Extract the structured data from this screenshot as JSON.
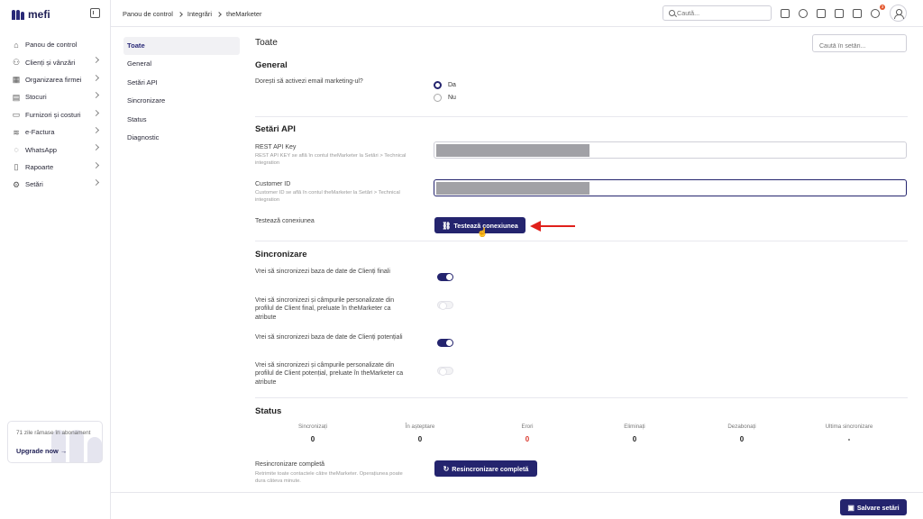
{
  "app": {
    "logo_text": "mefi"
  },
  "sidebar": {
    "items": [
      {
        "label": "Panou de control",
        "icon": "home-icon",
        "chevron": false
      },
      {
        "label": "Clienți și vânzări",
        "icon": "users-icon",
        "chevron": true
      },
      {
        "label": "Organizarea firmei",
        "icon": "building-icon",
        "chevron": true
      },
      {
        "label": "Stocuri",
        "icon": "box-icon",
        "chevron": true
      },
      {
        "label": "Furnizori și costuri",
        "icon": "truck-icon",
        "chevron": true
      },
      {
        "label": "e-Factura",
        "icon": "efactura-icon",
        "chevron": true
      },
      {
        "label": "WhatsApp",
        "icon": "whatsapp-icon",
        "chevron": true
      },
      {
        "label": "Rapoarte",
        "icon": "clipboard-icon",
        "chevron": true
      },
      {
        "label": "Setări",
        "icon": "gear-icon",
        "chevron": true
      }
    ],
    "subscription": {
      "text": "71 zile rămase în abonament",
      "upgrade_label": "Upgrade now"
    }
  },
  "header": {
    "breadcrumbs": [
      "Panou de control",
      "Integrări",
      "theMarketer"
    ],
    "search_placeholder": "Caută...",
    "notification_count": "3"
  },
  "section_nav": [
    "Toate",
    "General",
    "Setări API",
    "Sincronizare",
    "Status",
    "Diagnostic"
  ],
  "main": {
    "title": "Toate",
    "settings_search_placeholder": "Caută în setări...",
    "general": {
      "title": "General",
      "question": "Dorești să activezi email marketing-ul?",
      "options": [
        "Da",
        "Nu"
      ],
      "selected": "Da"
    },
    "api": {
      "title": "Setări API",
      "rest_key_label": "REST API Key",
      "rest_key_hint": "REST API KEY se află în contul theMarketer la Setări > Technical integration",
      "customer_id_label": "Customer ID",
      "customer_id_hint": "Customer ID se află în contul theMarketer la Setări > Technical integration",
      "test_label": "Testează conexiunea",
      "test_button": "Testează conexiunea"
    },
    "sync": {
      "title": "Sincronizare",
      "rows": [
        {
          "label": "Vrei să sincronizezi baza de date de Clienți finali",
          "enabled": true
        },
        {
          "label": "Vrei să sincronizezi și câmpurile personalizate din profilul de Client final, preluate în theMarketer ca atribute",
          "enabled": false
        },
        {
          "label": "Vrei să sincronizezi baza de date de Clienți potențiali",
          "enabled": true
        },
        {
          "label": "Vrei să sincronizezi și câmpurile personalizate din profilul de Client potențial, preluate în theMarketer ca atribute",
          "enabled": false
        }
      ]
    },
    "status": {
      "title": "Status",
      "stats": [
        {
          "label": "Sincronizați",
          "value": "0"
        },
        {
          "label": "În așteptare",
          "value": "0"
        },
        {
          "label": "Erori",
          "value": "0"
        },
        {
          "label": "Eliminați",
          "value": "0"
        },
        {
          "label": "Dezabonați",
          "value": "0"
        },
        {
          "label": "Ultima sincronizare",
          "value": "-"
        }
      ],
      "resync_label": "Resincronizare completă",
      "resync_hint": "Retrimite toate contactele către theMarketer. Operațiunea poate dura câteva minute.",
      "resync_button": "Resincronizare completă"
    },
    "save_button": "Salvare setări"
  },
  "colors": {
    "primary": "#24246e",
    "error": "#d9362b",
    "annotation_arrow": "#e0201b"
  }
}
